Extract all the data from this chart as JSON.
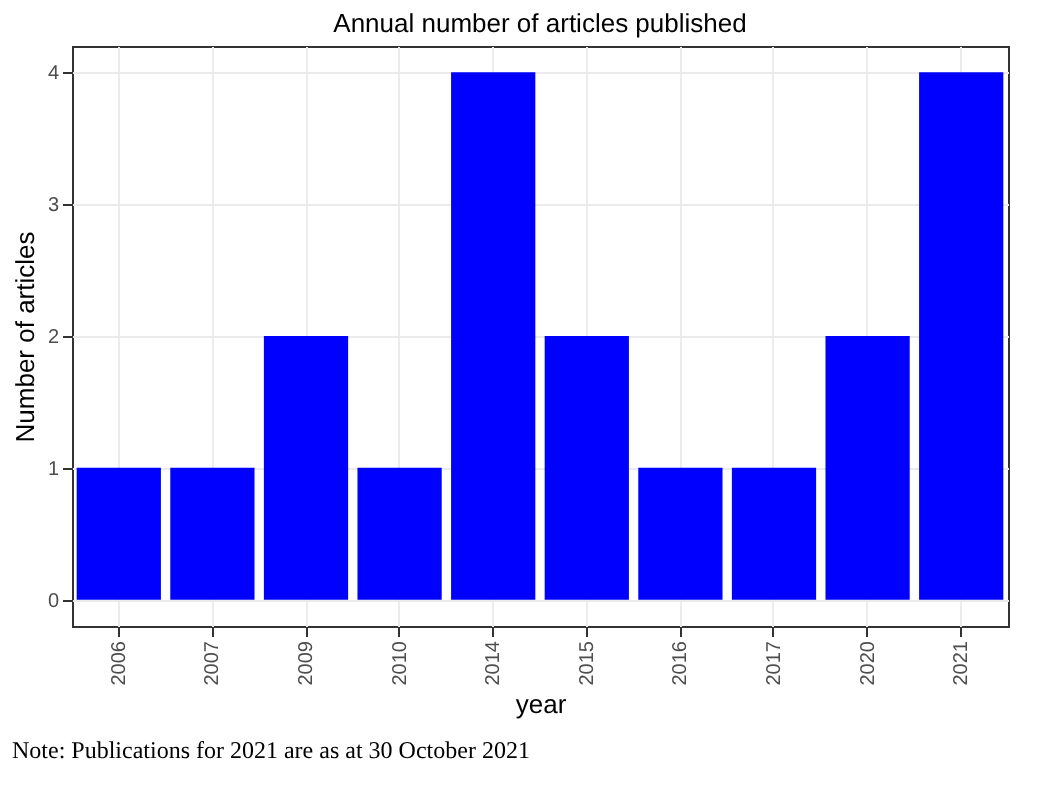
{
  "chart_data": {
    "type": "bar",
    "title": "Annual number of articles published",
    "xlabel": "year",
    "ylabel": "Number of articles",
    "categories": [
      "2006",
      "2007",
      "2009",
      "2010",
      "2014",
      "2015",
      "2016",
      "2017",
      "2020",
      "2021"
    ],
    "values": [
      1,
      1,
      2,
      1,
      4,
      2,
      1,
      1,
      2,
      4
    ],
    "color": "#0000ff",
    "ylim": [
      -0.2,
      4.2
    ],
    "yticks": [
      0,
      1,
      2,
      3,
      4
    ],
    "grid": true,
    "annotations": [
      "Note: Publications for 2021 are as at 30 October 2021"
    ]
  }
}
